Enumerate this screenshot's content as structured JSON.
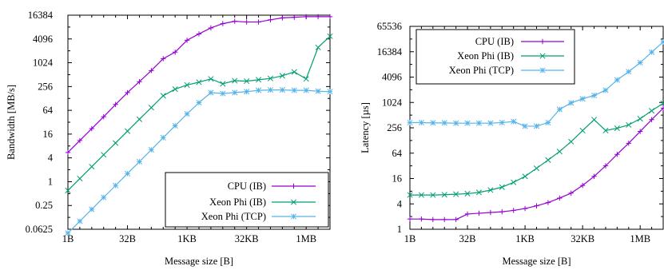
{
  "chart_data": [
    {
      "type": "line",
      "xlabel": "Message size [B]",
      "ylabel": "Bandwidth [MB/s]",
      "x_scale": "log2",
      "y_scale": "log2",
      "x_tick_labels": [
        "1B",
        "32B",
        "1KB",
        "32KB",
        "1MB"
      ],
      "x_tick_values": [
        1,
        32,
        1024,
        32768,
        1048576
      ],
      "y_tick_labels": [
        "0.0625",
        "0.25",
        "1",
        "4",
        "16",
        "64",
        "256",
        "1024",
        "4096",
        "16384"
      ],
      "y_tick_values": [
        0.0625,
        0.25,
        1,
        4,
        16,
        64,
        256,
        1024,
        4096,
        16384
      ],
      "xlim": [
        1,
        4194304
      ],
      "ylim": [
        0.0625,
        16384
      ],
      "legend_position": "bottom-right",
      "grid": false,
      "x": [
        1,
        2,
        4,
        8,
        16,
        32,
        64,
        128,
        256,
        512,
        1024,
        2048,
        4096,
        8192,
        16384,
        32768,
        65536,
        131072,
        262144,
        524288,
        1048576,
        2097152,
        4194304
      ],
      "series": [
        {
          "name": "CPU (IB)",
          "color": "#9400d3",
          "marker": "plus",
          "values": [
            5.5,
            11,
            22,
            44,
            90,
            180,
            340,
            650,
            1300,
            1900,
            3800,
            5500,
            7800,
            10000,
            11500,
            11000,
            11000,
            12500,
            14000,
            14500,
            15000,
            15000,
            15000
          ]
        },
        {
          "name": "Xeon Phi (IB)",
          "color": "#009e73",
          "marker": "x",
          "values": [
            0.6,
            1.2,
            2.4,
            4.8,
            9.5,
            19,
            38,
            75,
            150,
            220,
            280,
            330,
            400,
            300,
            360,
            350,
            380,
            410,
            480,
            600,
            400,
            2500,
            4800
          ]
        },
        {
          "name": "Xeon Phi (TCP)",
          "color": "#56b4e9",
          "marker": "star",
          "values": [
            0.05,
            0.1,
            0.2,
            0.4,
            0.8,
            1.6,
            3.2,
            6.4,
            13,
            26,
            52,
            100,
            180,
            170,
            180,
            190,
            205,
            210,
            210,
            205,
            205,
            195,
            190
          ]
        }
      ]
    },
    {
      "type": "line",
      "xlabel": "Message size [B]",
      "ylabel": "Latency [µs]",
      "x_scale": "log2",
      "y_scale": "log2",
      "x_tick_labels": [
        "1B",
        "32B",
        "1KB",
        "32KB",
        "1MB"
      ],
      "x_tick_values": [
        1,
        32,
        1024,
        32768,
        1048576
      ],
      "y_tick_labels": [
        "1",
        "4",
        "16",
        "64",
        "256",
        "1024",
        "4096",
        "16384",
        "65536"
      ],
      "y_tick_values": [
        1,
        4,
        16,
        64,
        256,
        1024,
        4096,
        16384,
        65536
      ],
      "xlim": [
        1,
        4194304
      ],
      "ylim": [
        1,
        65536
      ],
      "legend_position": "top-left",
      "grid": false,
      "x": [
        1,
        2,
        4,
        8,
        16,
        32,
        64,
        128,
        256,
        512,
        1024,
        2048,
        4096,
        8192,
        16384,
        32768,
        65536,
        131072,
        262144,
        524288,
        1048576,
        2097152,
        4194304
      ],
      "series": [
        {
          "name": "CPU (IB)",
          "color": "#9400d3",
          "marker": "plus",
          "values": [
            1.75,
            1.75,
            1.7,
            1.7,
            1.7,
            2.3,
            2.4,
            2.5,
            2.6,
            2.8,
            3.1,
            3.6,
            4.3,
            5.5,
            7.2,
            11,
            18,
            32,
            60,
            110,
            210,
            400,
            750
          ]
        },
        {
          "name": "Xeon Phi (IB)",
          "color": "#009e73",
          "marker": "x",
          "values": [
            6.5,
            6.5,
            6.5,
            6.6,
            6.8,
            7.0,
            7.5,
            8.5,
            10,
            13,
            18,
            28,
            44,
            70,
            120,
            220,
            400,
            220,
            250,
            300,
            420,
            650,
            980
          ]
        },
        {
          "name": "Xeon Phi (TCP)",
          "color": "#56b4e9",
          "marker": "star",
          "values": [
            340,
            340,
            335,
            335,
            330,
            330,
            330,
            330,
            340,
            360,
            280,
            280,
            340,
            700,
            1000,
            1250,
            1500,
            2000,
            3500,
            5500,
            9000,
            16000,
            28000
          ]
        }
      ]
    }
  ]
}
